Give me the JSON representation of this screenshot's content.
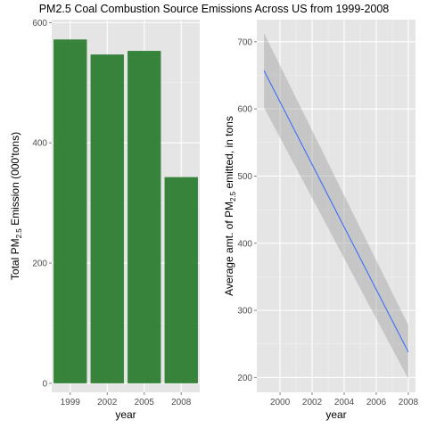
{
  "title": "PM2.5 Coal Combustion Source Emissions Across US from 1999-2008",
  "chart_data": [
    {
      "type": "bar",
      "categories": [
        "1999",
        "2002",
        "2005",
        "2008"
      ],
      "values": [
        572,
        547,
        553,
        343
      ],
      "ylim": [
        -15,
        605
      ],
      "yticks": [
        0,
        200,
        400,
        600
      ],
      "xlabel": "year",
      "ylabel": {
        "prefix": "Total PM",
        "sub": "2.5",
        "suffix": " Emission (000'tons)"
      },
      "bar_color": "#2e7d32",
      "grid": true
    },
    {
      "type": "line",
      "series": [
        {
          "x": [
            1999,
            2008
          ],
          "y": [
            657,
            238
          ]
        }
      ],
      "band": {
        "x": [
          1999,
          2008
        ],
        "upper": [
          713,
          278
        ],
        "lower": [
          602,
          198
        ]
      },
      "xlim": [
        1998.55,
        2008.45
      ],
      "ylim": [
        178,
        733
      ],
      "xticks": [
        2000,
        2002,
        2004,
        2006,
        2008
      ],
      "yticks": [
        200,
        300,
        400,
        500,
        600,
        700
      ],
      "xlabel": "year",
      "ylabel": {
        "prefix": "Average amt. of PM",
        "sub": "2.5",
        "suffix": " emitted, in tons"
      },
      "line_color": "#3366ff",
      "band_color": "#999999",
      "grid": true
    }
  ]
}
